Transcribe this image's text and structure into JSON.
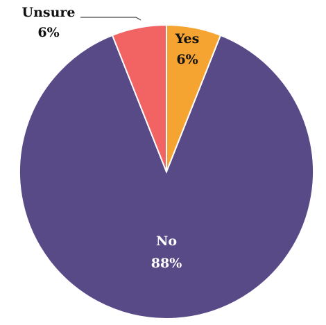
{
  "chart_data": {
    "type": "pie",
    "title": "",
    "slices": [
      {
        "label": "Yes",
        "value": 6,
        "value_label": "6%",
        "color": "#F5A331",
        "label_color": "#111111"
      },
      {
        "label": "No",
        "value": 88,
        "value_label": "88%",
        "color": "#574A87",
        "label_color": "#ffffff"
      },
      {
        "label": "Unsure",
        "value": 6,
        "value_label": "6%",
        "color": "#F26464",
        "label_color": "#111111"
      }
    ],
    "start_angle_deg": 0,
    "direction": "clockwise",
    "legend": "none"
  }
}
